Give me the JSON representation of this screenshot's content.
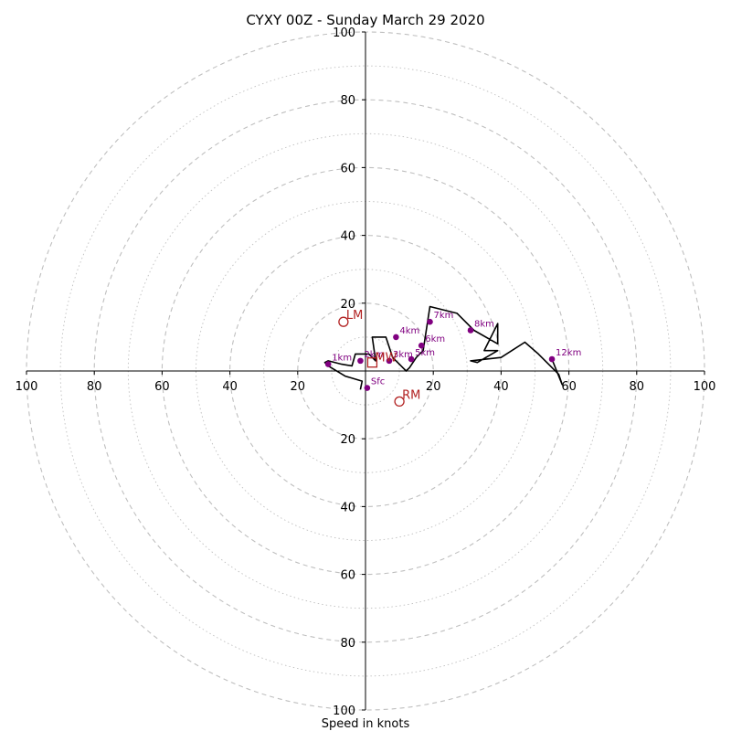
{
  "chart_data": {
    "type": "hodograph",
    "title": "CYXY 00Z - Sunday March 29 2020",
    "xlabel": "Speed in knots",
    "ylabel": "",
    "radius_max": 100,
    "axis_ticks": [
      20,
      40,
      60,
      80,
      100
    ],
    "x_tick_labels": [
      "100",
      "80",
      "60",
      "40",
      "20",
      "20",
      "40",
      "60",
      "80",
      "100"
    ],
    "y_tick_labels": [
      "100",
      "80",
      "60",
      "40",
      "20",
      "20",
      "40",
      "60",
      "80",
      "100"
    ],
    "grid": true,
    "colors": {
      "trace": "#000000",
      "height_marker": "#800080",
      "storm_motion": "#b22222",
      "grid": "#bfbfbf"
    },
    "trace": {
      "u": [
        -1.5,
        -1.0,
        -6,
        -11,
        -12,
        -11,
        -7,
        -4,
        -3,
        0,
        1,
        3,
        2,
        6,
        7,
        8,
        9,
        10,
        11,
        12,
        13,
        15,
        17,
        19,
        27,
        32,
        39,
        39,
        35,
        39,
        33,
        31,
        40,
        47,
        51,
        57,
        58,
        55
      ],
      "v": [
        -5.5,
        -3,
        -1.5,
        1.5,
        2.5,
        3,
        2,
        1.5,
        5,
        5,
        5,
        3,
        10,
        10,
        7,
        4,
        3,
        2,
        1,
        0,
        1,
        4,
        6,
        19,
        17,
        12,
        8,
        14,
        6,
        6,
        2.5,
        3,
        4,
        8.5,
        5,
        -1,
        -4,
        3.5
      ]
    },
    "height_labels": [
      {
        "label": "Sfc",
        "u": 0.5,
        "v": -5
      },
      {
        "label": "1km",
        "u": -11,
        "v": 2
      },
      {
        "label": "2km",
        "u": -1.5,
        "v": 3
      },
      {
        "label": "3km",
        "u": 7,
        "v": 3
      },
      {
        "label": "4km",
        "u": 9,
        "v": 10
      },
      {
        "label": "5km",
        "u": 13.5,
        "v": 3.5
      },
      {
        "label": "6km",
        "u": 16.5,
        "v": 7.5
      },
      {
        "label": "7km",
        "u": 19,
        "v": 14.5
      },
      {
        "label": "8km",
        "u": 31,
        "v": 12
      },
      {
        "label": "12km",
        "u": 55,
        "v": 3.5
      }
    ],
    "storm_motion": [
      {
        "label": "LM",
        "u": -6.5,
        "v": 14.5,
        "marker": "circle"
      },
      {
        "label": "RM",
        "u": 10,
        "v": -9,
        "marker": "circle"
      },
      {
        "label": "MW",
        "u": 2,
        "v": 2.5,
        "marker": "square"
      }
    ]
  }
}
